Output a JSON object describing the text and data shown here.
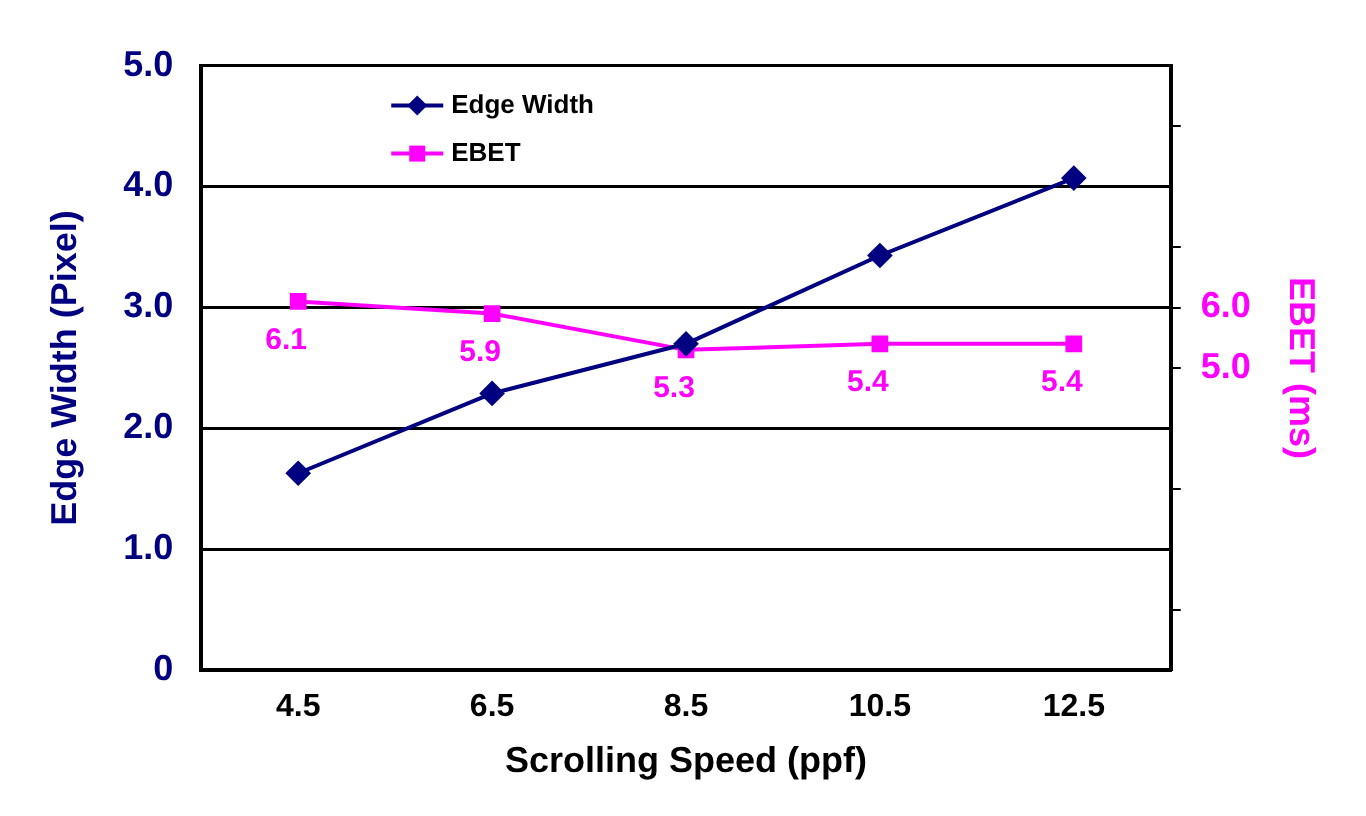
{
  "chart_data": {
    "type": "line",
    "xlabel": "Scrolling Speed (ppf)",
    "ylabel": "Edge Width (Pixel)",
    "y2label": "EBET (ms)",
    "categories": [
      "4.5",
      "6.5",
      "8.5",
      "10.5",
      "12.5"
    ],
    "series": [
      {
        "name": "Edge Width",
        "color": "#000080",
        "values": [
          1.63,
          2.29,
          2.7,
          3.43,
          4.07
        ],
        "marker": "diamond"
      },
      {
        "name": "EBET",
        "color": "#ff00ff",
        "values": [
          6.1,
          5.9,
          5.3,
          5.4,
          5.4
        ],
        "axis": "y2",
        "marker": "square",
        "value_labels": [
          "6.1",
          "5.9",
          "5.3",
          "5.4",
          "5.4"
        ]
      }
    ],
    "ylim": [
      0,
      5
    ],
    "yticks": [
      0,
      {
        "value": 1,
        "label": "1.0"
      },
      {
        "value": 2,
        "label": "2.0"
      },
      {
        "value": 3,
        "label": "3.0"
      },
      {
        "value": 4,
        "label": "4.0"
      },
      {
        "value": 5,
        "label": "5.0"
      }
    ],
    "y2lim": [
      0,
      10
    ],
    "y2ticks": [
      {
        "value": 1,
        "label": null
      },
      {
        "value": 3,
        "label": null
      },
      {
        "value": 5,
        "label": "5.0"
      },
      {
        "value": 6,
        "label": "6.0"
      },
      {
        "value": 7,
        "label": null
      },
      {
        "value": 9,
        "label": null
      }
    ],
    "grid": "y",
    "legend": "top left",
    "line_style": "solid"
  }
}
